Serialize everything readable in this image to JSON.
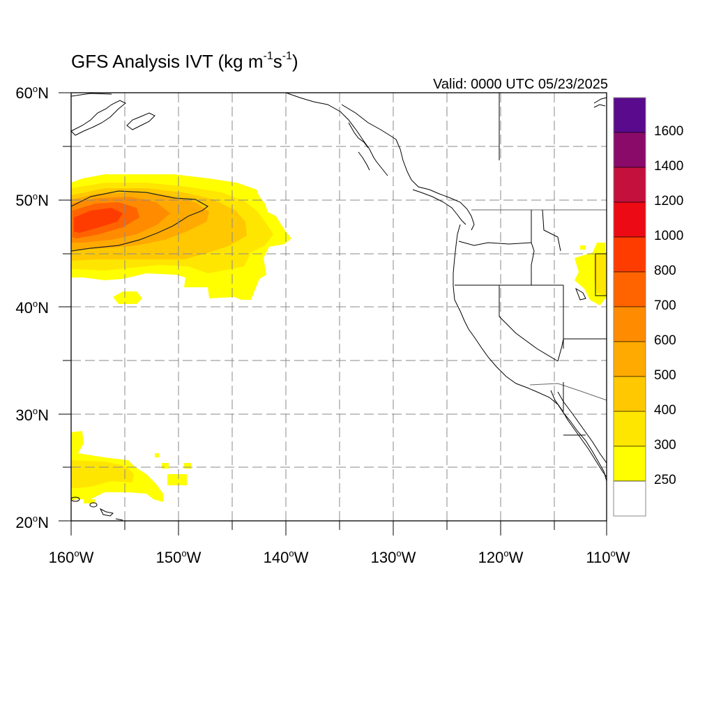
{
  "title": {
    "text": "GFS Analysis IVT (kg m",
    "sup1": "-1",
    "mid": "s",
    "sup2": "-1",
    "end": ")"
  },
  "valid": "Valid: 0000 UTC 05/23/2025",
  "lat_labels": [
    {
      "deg": "60",
      "hemi": "N"
    },
    {
      "deg": "50",
      "hemi": "N"
    },
    {
      "deg": "40",
      "hemi": "N"
    },
    {
      "deg": "30",
      "hemi": "N"
    },
    {
      "deg": "20",
      "hemi": "N"
    }
  ],
  "lon_labels": [
    {
      "deg": "160",
      "hemi": "W"
    },
    {
      "deg": "150",
      "hemi": "W"
    },
    {
      "deg": "140",
      "hemi": "W"
    },
    {
      "deg": "130",
      "hemi": "W"
    },
    {
      "deg": "120",
      "hemi": "W"
    },
    {
      "deg": "110",
      "hemi": "W"
    }
  ],
  "colorbar": {
    "labels": [
      "1600",
      "1400",
      "1200",
      "1000",
      "800",
      "700",
      "600",
      "500",
      "400",
      "300",
      "250"
    ],
    "colors": [
      "#5a0a8c",
      "#8a0a6a",
      "#c4103c",
      "#ec0a14",
      "#ff3c00",
      "#ff6400",
      "#ff8c00",
      "#ffaa00",
      "#ffc800",
      "#ffe600",
      "#ffff00",
      "#ffffff"
    ]
  },
  "map": {
    "lat_range": [
      20,
      60
    ],
    "lon_range": [
      -160,
      -110
    ],
    "ivt_colors": {
      "250": "#ffff00",
      "300": "#ffe600",
      "400": "#ffc800",
      "500": "#ffaa00",
      "600": "#ff8c00",
      "700": "#ff6400",
      "800": "#ff3c00"
    }
  }
}
